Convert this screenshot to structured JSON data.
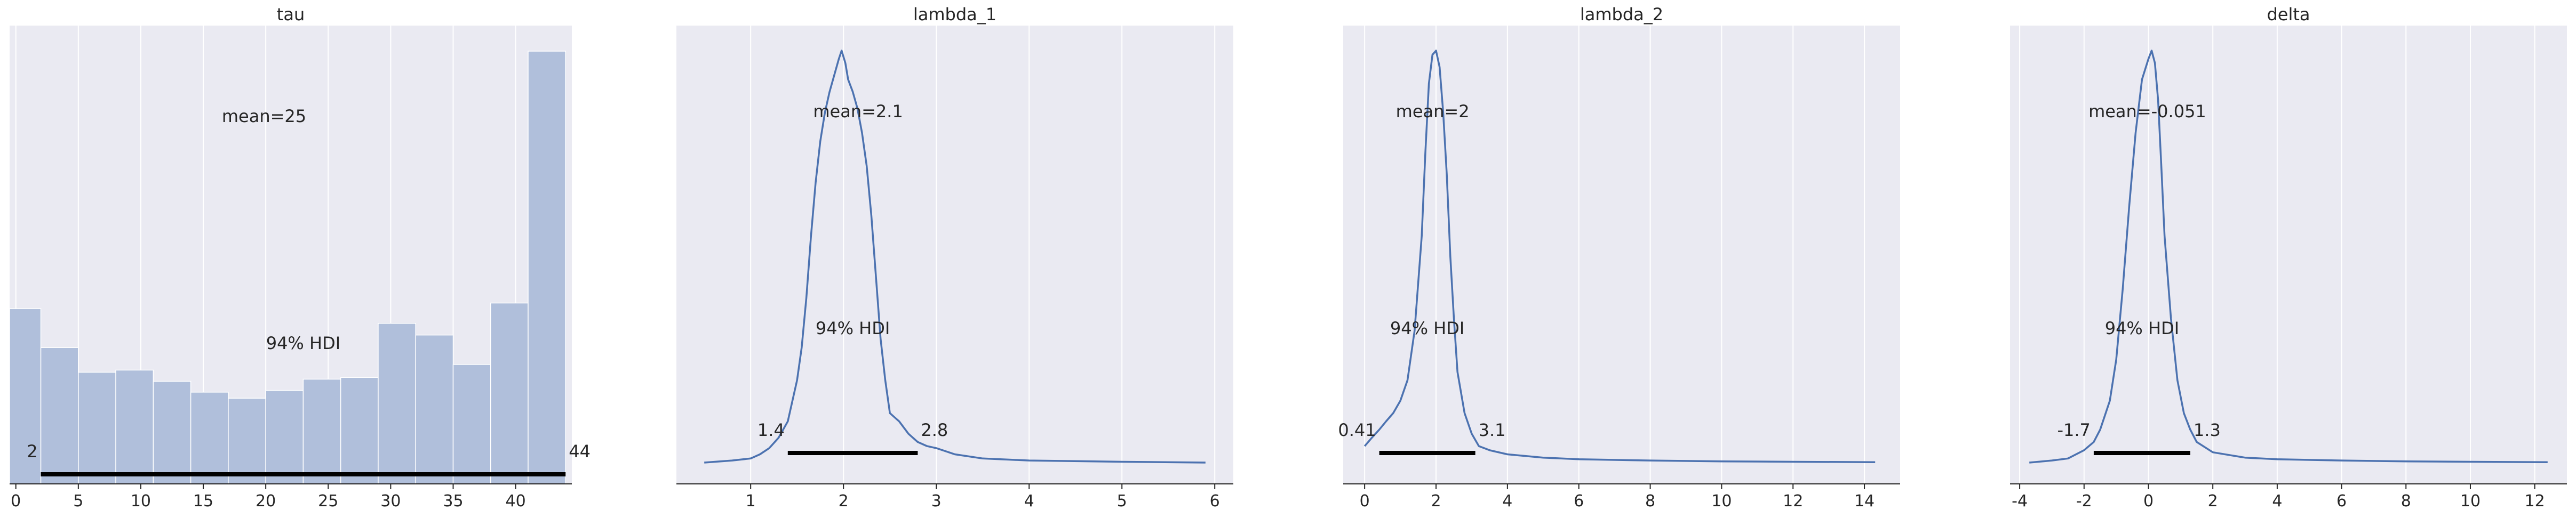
{
  "colors": {
    "axes_bg": "#EAEAF2",
    "grid": "#FFFFFF",
    "line": "#4C72B0",
    "bar_fill": "#B0BFDB",
    "hdi": "#000000",
    "text": "#262626"
  },
  "chart_data": [
    {
      "type": "bar",
      "title": "tau",
      "xlim": [
        -0.5,
        44.5
      ],
      "ylim": [
        0,
        1.0
      ],
      "xticks": [
        0,
        5,
        10,
        15,
        20,
        25,
        30,
        35,
        40
      ],
      "bins": [
        {
          "x0": -1.0,
          "x1": 2.0,
          "h": 0.405
        },
        {
          "x0": 2.0,
          "x1": 5.0,
          "h": 0.315
        },
        {
          "x0": 5.0,
          "x1": 8.0,
          "h": 0.258
        },
        {
          "x0": 8.0,
          "x1": 11.0,
          "h": 0.263
        },
        {
          "x0": 11.0,
          "x1": 14.0,
          "h": 0.237
        },
        {
          "x0": 14.0,
          "x1": 17.0,
          "h": 0.212
        },
        {
          "x0": 17.0,
          "x1": 20.0,
          "h": 0.198
        },
        {
          "x0": 20.0,
          "x1": 23.0,
          "h": 0.216
        },
        {
          "x0": 23.0,
          "x1": 26.0,
          "h": 0.242
        },
        {
          "x0": 26.0,
          "x1": 29.0,
          "h": 0.246
        },
        {
          "x0": 29.0,
          "x1": 32.0,
          "h": 0.371
        },
        {
          "x0": 32.0,
          "x1": 35.0,
          "h": 0.344
        },
        {
          "x0": 35.0,
          "x1": 38.0,
          "h": 0.276
        },
        {
          "x0": 38.0,
          "x1": 41.0,
          "h": 0.418
        },
        {
          "x0": 41.0,
          "x1": 44.0,
          "h": 1.0
        }
      ],
      "mean_label": "mean=25",
      "hdi_label": "94% HDI",
      "hdi": [
        2,
        44
      ],
      "hdi_low_label": "2",
      "hdi_high_label": "44"
    },
    {
      "type": "line",
      "title": "lambda_1",
      "xlim": [
        0.2,
        6.2
      ],
      "ylim": [
        0,
        1.0
      ],
      "xticks": [
        1,
        2,
        3,
        4,
        5,
        6
      ],
      "x": [
        0.5,
        0.8,
        1.0,
        1.1,
        1.2,
        1.3,
        1.4,
        1.5,
        1.55,
        1.6,
        1.65,
        1.7,
        1.75,
        1.8,
        1.85,
        1.9,
        1.95,
        1.98,
        2.02,
        2.05,
        2.1,
        2.15,
        2.2,
        2.25,
        2.3,
        2.35,
        2.4,
        2.45,
        2.5,
        2.55,
        2.6,
        2.7,
        2.8,
        2.9,
        3.0,
        3.2,
        3.5,
        4.0,
        5.0,
        5.9
      ],
      "y": [
        0.0,
        0.005,
        0.01,
        0.02,
        0.035,
        0.06,
        0.1,
        0.2,
        0.28,
        0.4,
        0.55,
        0.68,
        0.78,
        0.85,
        0.9,
        0.94,
        0.98,
        1.0,
        0.97,
        0.93,
        0.9,
        0.86,
        0.8,
        0.72,
        0.6,
        0.45,
        0.3,
        0.2,
        0.12,
        0.11,
        0.1,
        0.07,
        0.05,
        0.04,
        0.035,
        0.02,
        0.01,
        0.005,
        0.002,
        0.0
      ],
      "mean_label": "mean=2.1",
      "hdi_label": "94% HDI",
      "hdi": [
        1.4,
        2.8
      ],
      "hdi_low_label": "1.4",
      "hdi_high_label": "2.8"
    },
    {
      "type": "line",
      "title": "lambda_2",
      "xlim": [
        -0.6,
        15.0
      ],
      "ylim": [
        0,
        1.0
      ],
      "xticks": [
        0,
        2,
        4,
        6,
        8,
        10,
        12,
        14
      ],
      "x": [
        0.0,
        0.2,
        0.41,
        0.6,
        0.8,
        1.0,
        1.2,
        1.4,
        1.6,
        1.7,
        1.8,
        1.9,
        2.0,
        2.1,
        2.2,
        2.3,
        2.4,
        2.5,
        2.6,
        2.8,
        3.0,
        3.2,
        3.5,
        4.0,
        5.0,
        6.0,
        8.0,
        10.0,
        12.0,
        14.3
      ],
      "y": [
        0.04,
        0.06,
        0.08,
        0.1,
        0.12,
        0.15,
        0.2,
        0.32,
        0.55,
        0.75,
        0.92,
        0.99,
        1.0,
        0.96,
        0.85,
        0.7,
        0.5,
        0.35,
        0.22,
        0.12,
        0.07,
        0.04,
        0.03,
        0.02,
        0.012,
        0.008,
        0.005,
        0.003,
        0.002,
        0.001
      ],
      "mean_label": "mean=2",
      "hdi_label": "94% HDI",
      "hdi": [
        0.41,
        3.1
      ],
      "hdi_low_label": "0.41",
      "hdi_high_label": "3.1"
    },
    {
      "type": "line",
      "title": "delta",
      "xlim": [
        -4.3,
        13.0
      ],
      "ylim": [
        0,
        1.0
      ],
      "xticks": [
        -4,
        -2,
        0,
        2,
        4,
        6,
        8,
        10,
        12
      ],
      "x": [
        -3.7,
        -3.0,
        -2.5,
        -2.0,
        -1.7,
        -1.5,
        -1.2,
        -1.0,
        -0.8,
        -0.6,
        -0.4,
        -0.2,
        0.0,
        0.1,
        0.2,
        0.3,
        0.4,
        0.5,
        0.7,
        0.9,
        1.1,
        1.3,
        1.5,
        2.0,
        3.0,
        4.0,
        6.0,
        8.0,
        10.0,
        12.4
      ],
      "y": [
        0.0,
        0.005,
        0.01,
        0.03,
        0.05,
        0.08,
        0.15,
        0.25,
        0.42,
        0.62,
        0.8,
        0.93,
        0.98,
        1.0,
        0.97,
        0.88,
        0.72,
        0.55,
        0.35,
        0.2,
        0.12,
        0.08,
        0.05,
        0.025,
        0.012,
        0.008,
        0.005,
        0.003,
        0.002,
        0.001
      ],
      "mean_label": "mean=-0.051",
      "hdi_label": "94% HDI",
      "hdi": [
        -1.7,
        1.3
      ],
      "hdi_low_label": "-1.7",
      "hdi_high_label": "1.3"
    }
  ]
}
